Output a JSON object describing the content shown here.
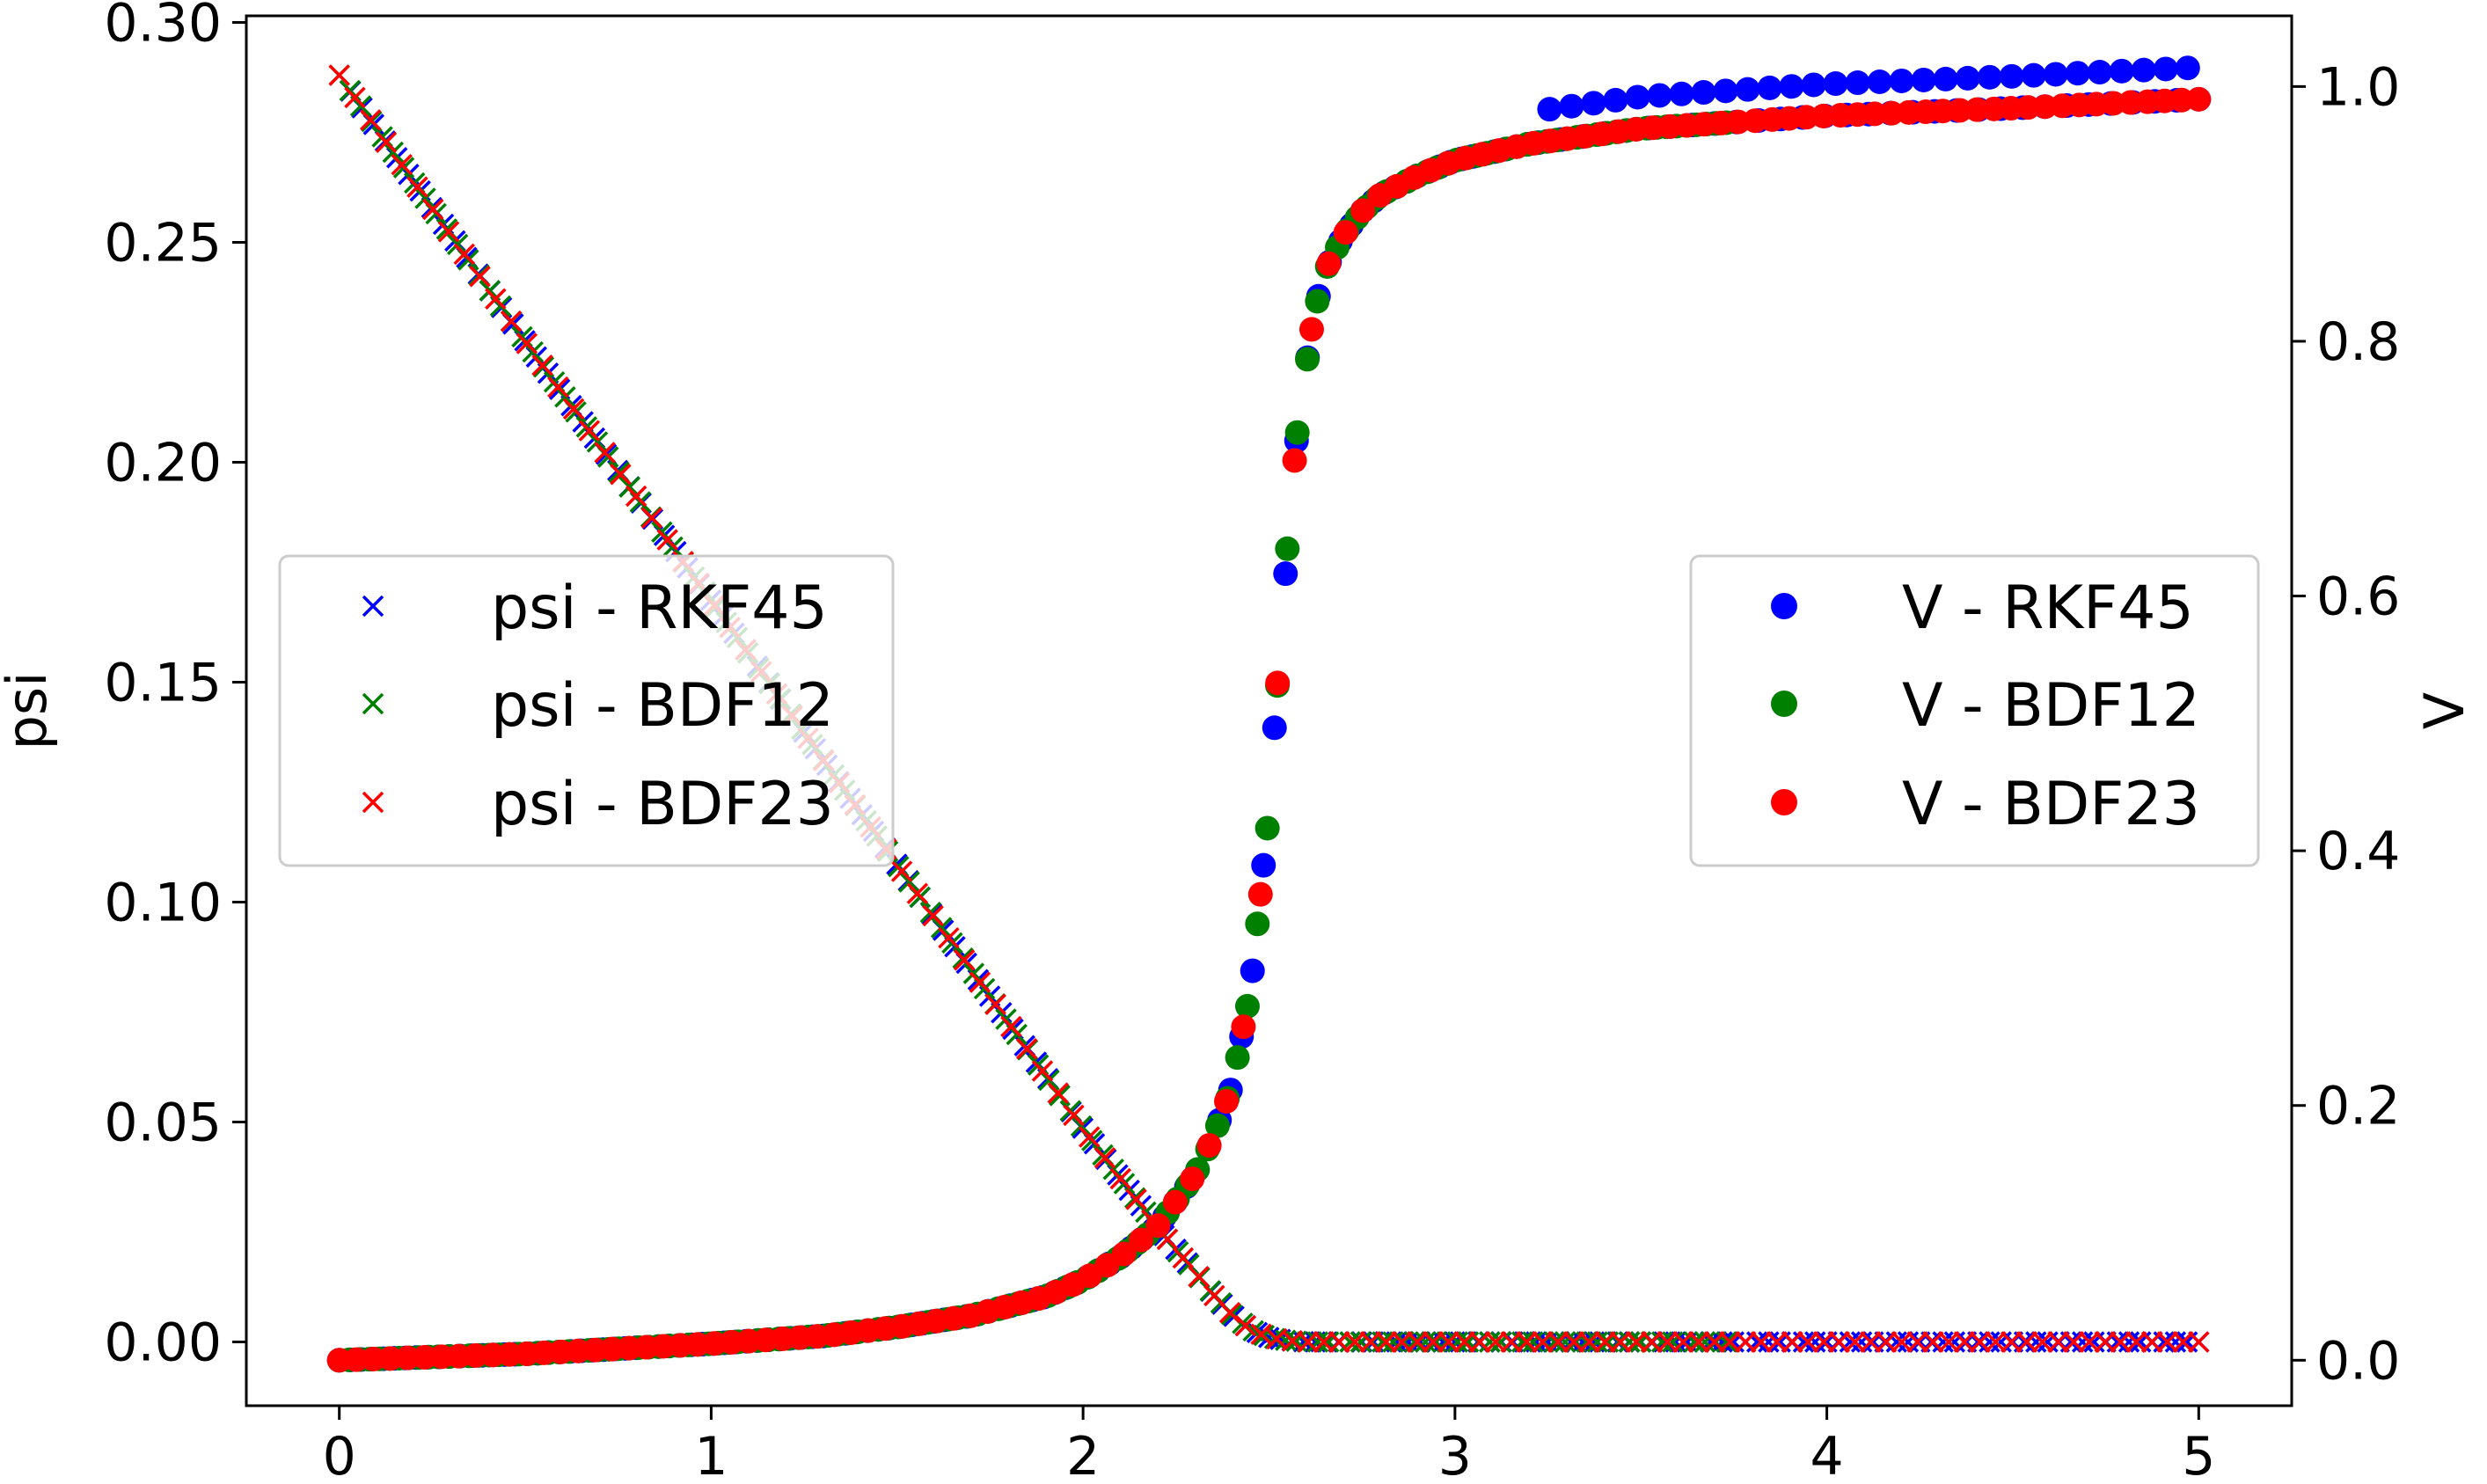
{
  "chart_data": {
    "type": "scatter",
    "title": "",
    "xlabel": "",
    "ylabel_left": "psi",
    "ylabel_right": "V",
    "xlim": [
      -0.25,
      5.25
    ],
    "ylim_left": [
      -0.0145,
      0.3015
    ],
    "ylim_right": [
      -0.0357,
      1.0555
    ],
    "x_ticks": [
      "0",
      "1",
      "2",
      "3",
      "4",
      "5"
    ],
    "y_left_ticks": [
      "0.00",
      "0.05",
      "0.10",
      "0.15",
      "0.20",
      "0.25",
      "0.30"
    ],
    "y_right_ticks": [
      "0.0",
      "0.2",
      "0.4",
      "0.6",
      "0.8",
      "1.0"
    ],
    "grid": false,
    "legends": [
      {
        "placement": "center-left",
        "entries": [
          "psi - RKF45",
          "psi - BDF12",
          "psi - BDF23"
        ]
      },
      {
        "placement": "center-right",
        "entries": [
          "V - RKF45",
          "V - BDF12",
          "V - BDF23"
        ]
      }
    ],
    "colors": {
      "RKF45": "#0000ff",
      "BDF12": "#008000",
      "BDF23": "#ff0000"
    },
    "psi_profile": {
      "x": [
        0,
        0.5,
        1.0,
        1.5,
        1.8,
        2.0,
        2.1,
        2.2,
        2.3,
        2.35,
        2.4,
        2.45,
        2.5,
        2.55,
        2.6,
        5.0
      ],
      "y": [
        0.288,
        0.2275,
        0.1685,
        0.1085,
        0.0725,
        0.0485,
        0.0372,
        0.026,
        0.016,
        0.0108,
        0.0062,
        0.0028,
        0.001,
        0.0003,
        0.0,
        0.0
      ]
    },
    "V_profile": {
      "x": [
        0,
        0.5,
        1.0,
        1.3,
        1.5,
        1.7,
        1.9,
        2.0,
        2.1,
        2.2,
        2.3,
        2.35,
        2.4,
        2.45,
        2.5,
        2.52,
        2.54,
        2.56,
        2.58,
        2.6,
        2.62,
        2.65,
        2.7,
        2.75,
        2.8,
        2.9,
        3.0,
        3.2,
        3.5,
        4.0,
        4.5,
        5.0
      ],
      "y": [
        0.0,
        0.005,
        0.013,
        0.019,
        0.026,
        0.035,
        0.05,
        0.063,
        0.081,
        0.105,
        0.145,
        0.175,
        0.215,
        0.29,
        0.43,
        0.52,
        0.6,
        0.68,
        0.74,
        0.78,
        0.82,
        0.855,
        0.883,
        0.902,
        0.915,
        0.93,
        0.942,
        0.955,
        0.967,
        0.977,
        0.983,
        0.99
      ]
    },
    "series": [
      {
        "name": "psi - RKF45",
        "marker": "x",
        "color": "#0000ff",
        "axis": "left",
        "x_start": 0.03,
        "x_end": 5.0,
        "count": 160
      },
      {
        "name": "psi - BDF12",
        "marker": "x",
        "color": "#008000",
        "axis": "left",
        "x_start": 0.0,
        "x_end": 3.73,
        "count": 130
      },
      {
        "name": "psi - BDF23",
        "marker": "x",
        "color": "#ff0000",
        "axis": "left",
        "x_start": 0.0,
        "x_end": 5.0,
        "count": 120
      },
      {
        "name": "V - RKF45",
        "marker": "o",
        "color": "#0000ff",
        "axis": "right",
        "x_start": 0.0,
        "x_end": 5.0,
        "count": 170
      },
      {
        "name": "V - BDF12",
        "marker": "o",
        "color": "#008000",
        "axis": "right",
        "x_start": 0.0,
        "x_end": 3.73,
        "count": 140
      },
      {
        "name": "V - BDF23",
        "marker": "o",
        "color": "#ff0000",
        "axis": "right",
        "x_start": 0.0,
        "x_end": 5.0,
        "count": 110
      }
    ]
  }
}
